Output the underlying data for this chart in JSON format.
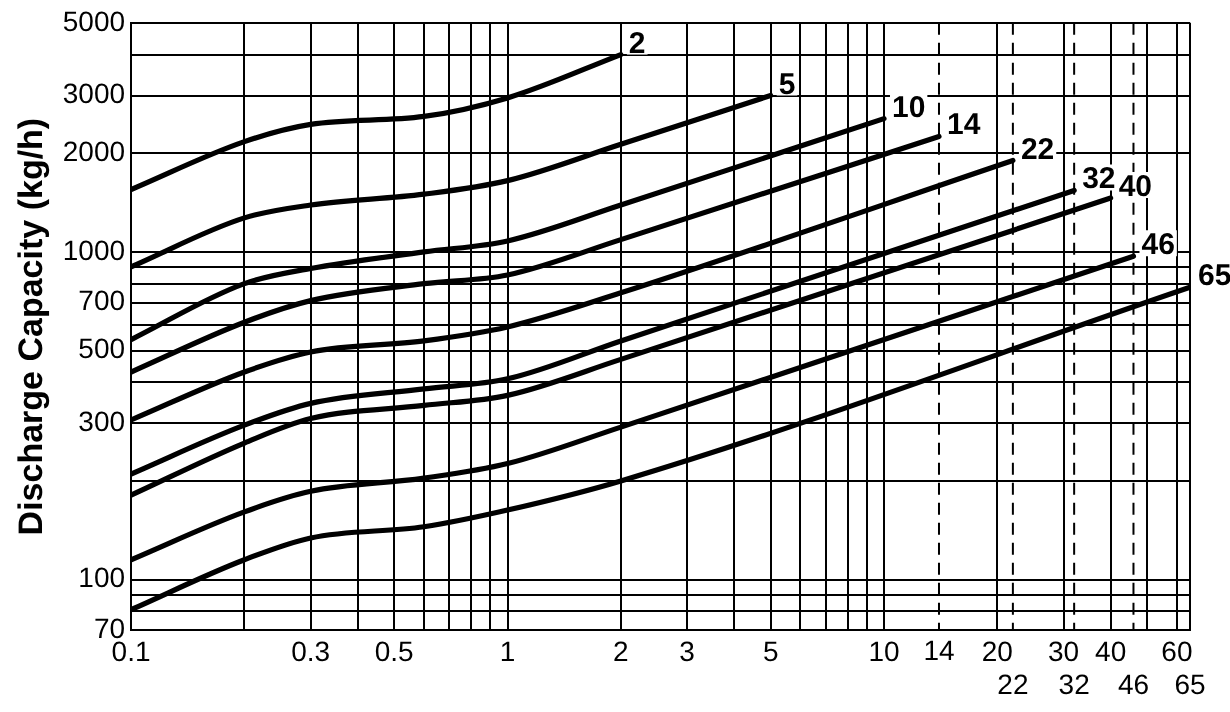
{
  "chart_data": {
    "type": "line",
    "ylabel": "Discharge Capacity (kg/h)",
    "log": "xy",
    "grid": true,
    "legend": false,
    "marker": "none",
    "line_style": "solid",
    "xlim": [
      0.1,
      65
    ],
    "ylim": [
      70,
      5000
    ],
    "xticks": [
      0.1,
      {
        "value": 0.2,
        "label": null
      },
      0.3,
      {
        "value": 0.4,
        "label": null
      },
      0.5,
      {
        "value": 0.6,
        "label": null
      },
      {
        "value": 0.7,
        "label": null
      },
      {
        "value": 0.8,
        "label": null
      },
      {
        "value": 0.9,
        "label": null
      },
      1,
      2,
      3,
      {
        "value": 4,
        "label": null
      },
      5,
      {
        "value": 6,
        "label": null
      },
      {
        "value": 7,
        "label": null
      },
      {
        "value": 8,
        "label": null
      },
      {
        "value": 9,
        "label": null
      },
      10,
      20,
      30,
      40,
      {
        "value": 50,
        "label": null
      },
      60,
      {
        "value": 65,
        "label": null
      }
    ],
    "yticks": [
      70,
      {
        "value": 80,
        "label": null
      },
      {
        "value": 90,
        "label": null
      },
      100,
      {
        "value": 200,
        "label": null
      },
      300,
      {
        "value": 400,
        "label": null
      },
      500,
      {
        "value": 600,
        "label": null
      },
      700,
      {
        "value": 800,
        "label": null
      },
      {
        "value": 900,
        "label": null
      },
      1000,
      2000,
      3000,
      {
        "value": 4000,
        "label": null
      },
      5000
    ],
    "series": [
      {
        "color": "#000000",
        "x": [
          0.1,
          0.2,
          0.3,
          0.6,
          1,
          2
        ],
        "values": [
          1550,
          2170,
          2450,
          2590,
          2950,
          4000
        ]
      },
      {
        "color": "#000000",
        "x": [
          0.1,
          0.2,
          0.3,
          0.6,
          1,
          2,
          5
        ],
        "values": [
          900,
          1270,
          1390,
          1500,
          1650,
          2130,
          3000
        ]
      },
      {
        "color": "#000000",
        "x": [
          0.1,
          0.2,
          0.3,
          0.6,
          1,
          2,
          10
        ],
        "values": [
          540,
          800,
          890,
          1000,
          1080,
          1390,
          2550
        ]
      },
      {
        "color": "#000000",
        "x": [
          0.1,
          0.2,
          0.3,
          0.6,
          1,
          2,
          14
        ],
        "values": [
          430,
          610,
          710,
          800,
          850,
          1090,
          2250
        ]
      },
      {
        "color": "#000000",
        "x": [
          0.1,
          0.2,
          0.3,
          0.6,
          1,
          2,
          22
        ],
        "values": [
          307,
          430,
          495,
          535,
          590,
          750,
          1900
        ]
      },
      {
        "color": "#000000",
        "x": [
          0.1,
          0.2,
          0.3,
          0.6,
          1,
          2,
          32
        ],
        "values": [
          210,
          296,
          345,
          382,
          410,
          535,
          1540
        ]
      },
      {
        "color": "#000000",
        "x": [
          0.1,
          0.2,
          0.3,
          0.6,
          1,
          2,
          40
        ],
        "values": [
          181,
          261,
          310,
          340,
          365,
          470,
          1460
        ]
      },
      {
        "color": "#000000",
        "x": [
          0.1,
          0.2,
          0.3,
          0.6,
          1,
          2,
          46
        ],
        "values": [
          115,
          161,
          186,
          204,
          226,
          292,
          970
        ]
      },
      {
        "color": "#000000",
        "x": [
          0.1,
          0.2,
          0.3,
          0.6,
          1,
          2,
          65
        ],
        "values": [
          81,
          115,
          134,
          145,
          163,
          200,
          780
        ]
      }
    ],
    "ref_lines": [
      {
        "axis": "x",
        "value": 14,
        "label": "14",
        "line_style": "dashed"
      },
      {
        "axis": "x",
        "value": 22,
        "label": "22",
        "line_style": "dashed"
      },
      {
        "axis": "x",
        "value": 32,
        "label": "32",
        "line_style": "dashed"
      },
      {
        "axis": "x",
        "value": 46,
        "label": "46",
        "line_style": "dashed"
      }
    ],
    "annotations": [
      {
        "text": "2",
        "x": 2,
        "y": 4000
      },
      {
        "text": "5",
        "x": 5,
        "y": 3000
      },
      {
        "text": "10",
        "x": 10,
        "y": 2550
      },
      {
        "text": "14",
        "x": 14,
        "y": 2250
      },
      {
        "text": "22",
        "x": 22,
        "y": 1900
      },
      {
        "text": "32",
        "x": 32,
        "y": 1540
      },
      {
        "text": "40",
        "x": 40,
        "y": 1460
      },
      {
        "text": "46",
        "x": 46,
        "y": 970
      },
      {
        "text": "65",
        "x": 65,
        "y": 780
      },
      "65"
    ]
  }
}
